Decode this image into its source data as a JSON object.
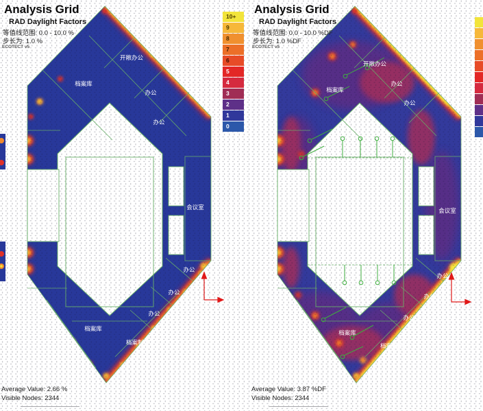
{
  "legend": {
    "items": [
      {
        "label": "10+",
        "color": "#f2e43b",
        "text": "#4a3b00"
      },
      {
        "label": "9",
        "color": "#f6b83a",
        "text": "#4a3b00"
      },
      {
        "label": "8",
        "color": "#f0902f",
        "text": "#4a2a00"
      },
      {
        "label": "7",
        "color": "#ec6f28",
        "text": "#3d1d00"
      },
      {
        "label": "6",
        "color": "#e74b27",
        "text": "#3d0f00"
      },
      {
        "label": "5",
        "color": "#e32726",
        "text": "#ffffff"
      },
      {
        "label": "4",
        "color": "#d52a3f",
        "text": "#ffffff"
      },
      {
        "label": "3",
        "color": "#a02d55",
        "text": "#ffffff"
      },
      {
        "label": "2",
        "color": "#5e3088",
        "text": "#ffffff"
      },
      {
        "label": "1",
        "color": "#30389b",
        "text": "#ffffff"
      },
      {
        "label": "0",
        "color": "#2c58aa",
        "text": "#ffffff"
      }
    ]
  },
  "panels": [
    {
      "header": {
        "title": "Analysis Grid",
        "subtitle": "RAD Daylight Factors",
        "range": "等值线范围: 0.0 - 10.0 %",
        "step": "步长为: 1.0 %",
        "app": "ECOTECT v5"
      },
      "rooms": {
        "open_office": "开敞办公",
        "office": "办公",
        "archive": "档案库",
        "meeting": "会议室",
        "production": "档案制作"
      },
      "footer": {
        "average": "Average Value: 2.66 %",
        "nodes": "Visible Nodes: 2344"
      }
    },
    {
      "header": {
        "title": "Analysis Grid",
        "subtitle": "RAD Daylight Factors",
        "range": "等值线范围: 0.0 - 10.0 %DF",
        "step": "步长为: 1.0 %DF",
        "app": "ECOTECT v5"
      },
      "rooms": {
        "open_office": "开敞办公",
        "office": "办公",
        "archive": "档案库",
        "meeting": "会议室",
        "production": "档案制作"
      },
      "footer": {
        "average": "Average Value: 3.87 %DF",
        "nodes": "Visible Nodes: 2344"
      }
    }
  ]
}
